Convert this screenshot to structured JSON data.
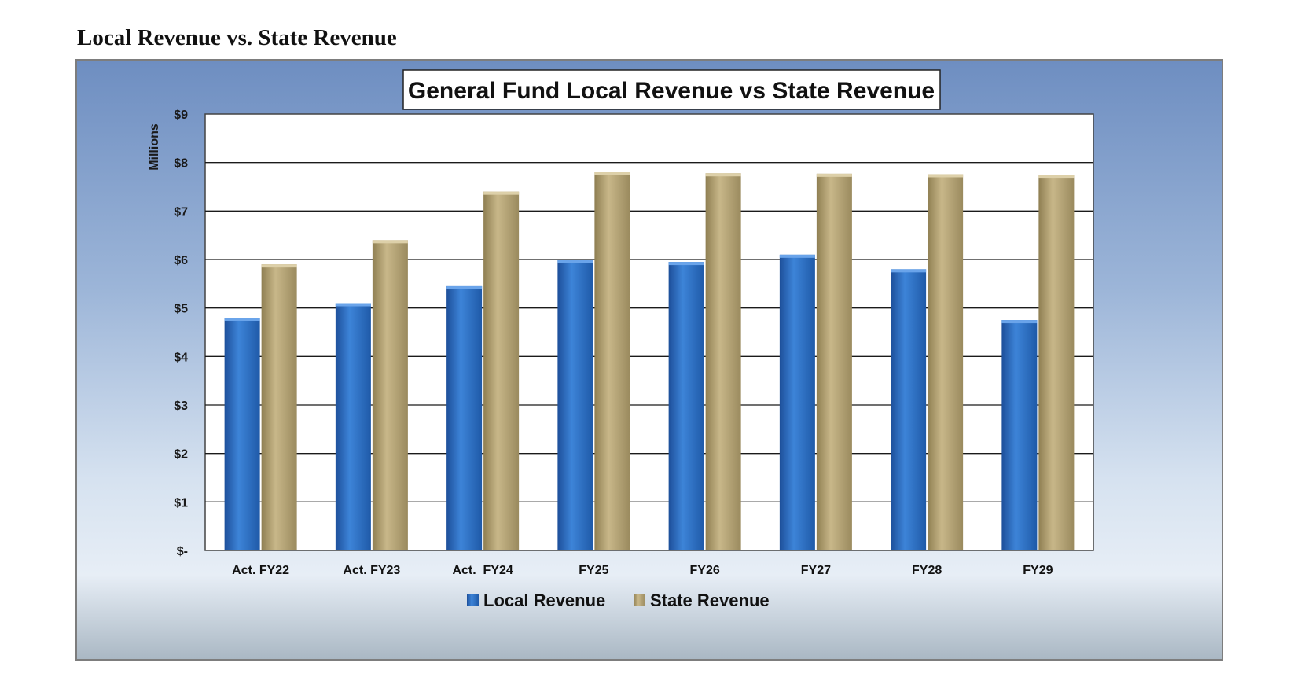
{
  "page": {
    "heading": "Local Revenue vs. State Revenue"
  },
  "colors": {
    "local": "#2e6fc4",
    "state": "#b9a575",
    "plot_background": "#ffffff",
    "gridline": "#1a1a1a"
  },
  "chart_data": {
    "type": "bar",
    "title": "General Fund Local Revenue vs State Revenue",
    "xlabel": "",
    "ylabel": "Millions",
    "ylim": [
      0,
      9
    ],
    "yticks": [
      0,
      1,
      2,
      3,
      4,
      5,
      6,
      7,
      8,
      9
    ],
    "ytick_labels": [
      "$-",
      "$1",
      "$2",
      "$3",
      "$4",
      "$5",
      "$6",
      "$7",
      "$8",
      "$9"
    ],
    "grid": true,
    "legend_position": "bottom",
    "categories": [
      "Act. FY22",
      "Act. FY23",
      "Act.  FY24",
      "FY25",
      "FY26",
      "FY27",
      "FY28",
      "FY29"
    ],
    "series": [
      {
        "name": "Local Revenue",
        "values": [
          4.8,
          5.1,
          5.45,
          6.0,
          5.95,
          6.1,
          5.8,
          4.75
        ]
      },
      {
        "name": "State Revenue",
        "values": [
          5.9,
          6.4,
          7.4,
          7.8,
          7.78,
          7.77,
          7.76,
          7.75
        ]
      }
    ]
  }
}
